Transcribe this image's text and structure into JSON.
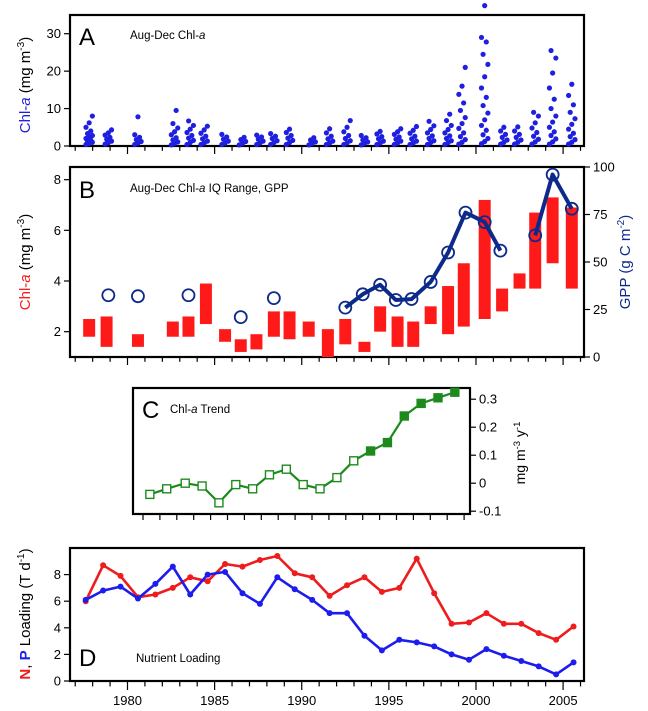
{
  "chart_data": [
    {
      "panel": "A",
      "type": "scatter",
      "title": "Aug-Dec Chl-a",
      "ylabel_left": "Chl-a (mg m-3)",
      "ylim": [
        0,
        35
      ],
      "yticks": [
        0,
        10,
        20,
        30
      ],
      "xlim": [
        1976.7,
        2006.2
      ],
      "colors": {
        "points": "#1f1fe0",
        "ylabel": "#1f1fe0"
      },
      "series": [
        {
          "x": 1977.8,
          "values": [
            0.4,
            0.7,
            1.0,
            1.3,
            1.6,
            2.0,
            2.4,
            2.8,
            3.3,
            4.0,
            5.0,
            6.2,
            8.0
          ]
        },
        {
          "x": 1978.9,
          "values": [
            0.5,
            0.9,
            1.3,
            1.8,
            2.3,
            2.9,
            3.5,
            4.3
          ]
        },
        {
          "x": 1980.6,
          "values": [
            0.4,
            0.8,
            1.2,
            1.7,
            2.3,
            3.0,
            7.8
          ]
        },
        {
          "x": 1982.7,
          "values": [
            0.3,
            0.7,
            1.1,
            1.6,
            2.2,
            3.0,
            3.8,
            4.8,
            6.0,
            9.5
          ]
        },
        {
          "x": 1983.6,
          "values": [
            0.4,
            0.9,
            1.5,
            2.1,
            2.8,
            3.6,
            4.5,
            5.5,
            6.7
          ]
        },
        {
          "x": 1984.4,
          "values": [
            0.4,
            0.8,
            1.3,
            1.9,
            2.6,
            3.4,
            4.3,
            5.3
          ]
        },
        {
          "x": 1985.6,
          "values": [
            0.4,
            0.8,
            1.3,
            1.8,
            2.4,
            3.1
          ]
        },
        {
          "x": 1986.6,
          "values": [
            0.3,
            0.7,
            1.2,
            1.7,
            2.3
          ]
        },
        {
          "x": 1987.6,
          "values": [
            0.4,
            0.8,
            1.3,
            1.8,
            2.4,
            2.9
          ]
        },
        {
          "x": 1988.4,
          "values": [
            0.4,
            0.9,
            1.4,
            2.0,
            2.6,
            3.3
          ]
        },
        {
          "x": 1989.3,
          "values": [
            0.4,
            0.9,
            1.5,
            2.1,
            2.8,
            3.6,
            4.5
          ]
        },
        {
          "x": 1990.6,
          "values": [
            0.3,
            0.7,
            1.1,
            1.6,
            2.2
          ]
        },
        {
          "x": 1991.6,
          "values": [
            0.4,
            0.8,
            1.3,
            1.9,
            2.6,
            3.5,
            4.6
          ]
        },
        {
          "x": 1992.6,
          "values": [
            0.4,
            0.8,
            1.4,
            2.0,
            2.8,
            3.8,
            5.0,
            6.8
          ]
        },
        {
          "x": 1993.6,
          "values": [
            0.3,
            0.7,
            1.1,
            1.6,
            2.2,
            2.8
          ]
        },
        {
          "x": 1994.5,
          "values": [
            0.4,
            0.8,
            1.3,
            1.9,
            2.5,
            3.2,
            3.9
          ]
        },
        {
          "x": 1995.5,
          "values": [
            0.4,
            0.8,
            1.3,
            1.8,
            2.4,
            3.1,
            3.8,
            4.6
          ]
        },
        {
          "x": 1996.4,
          "values": [
            0.4,
            0.8,
            1.3,
            1.9,
            2.6,
            3.4,
            4.2,
            5.2
          ]
        },
        {
          "x": 1997.4,
          "values": [
            0.4,
            0.9,
            1.4,
            2.0,
            2.7,
            3.5,
            4.4,
            5.4,
            6.6
          ]
        },
        {
          "x": 1998.4,
          "values": [
            0.4,
            0.9,
            1.4,
            2.0,
            2.7,
            3.5,
            4.4,
            5.5,
            6.8,
            8.5
          ]
        },
        {
          "x": 1999.2,
          "values": [
            0.5,
            1.0,
            1.7,
            2.5,
            3.5,
            4.7,
            6.0,
            7.6,
            9.5,
            11.5,
            13.8,
            16.0,
            21.0
          ]
        },
        {
          "x": 2000.5,
          "values": [
            0.6,
            1.2,
            2.0,
            3.0,
            4.2,
            5.5,
            7.0,
            8.8,
            10.8,
            13.0,
            15.5,
            18.5,
            21.8,
            24.5,
            27.8,
            29.0,
            37.5
          ]
        },
        {
          "x": 2001.6,
          "values": [
            0.5,
            1.0,
            1.6,
            2.3,
            3.1,
            4.0,
            5.0
          ]
        },
        {
          "x": 2002.4,
          "values": [
            0.5,
            1.0,
            1.6,
            2.3,
            3.1,
            4.0,
            5.1
          ]
        },
        {
          "x": 2003.4,
          "values": [
            0.5,
            1.1,
            1.8,
            2.6,
            3.6,
            4.8,
            6.2,
            8.0,
            9.0
          ]
        },
        {
          "x": 2004.4,
          "values": [
            0.5,
            1.1,
            1.9,
            2.8,
            3.8,
            5.0,
            6.4,
            8.0,
            10.0,
            12.5,
            15.5,
            19.5,
            23.5,
            25.5
          ]
        },
        {
          "x": 2005.5,
          "values": [
            0.5,
            1.0,
            1.7,
            2.5,
            3.4,
            4.5,
            5.8,
            7.3,
            9.0,
            11.0,
            13.5,
            16.5
          ]
        }
      ]
    },
    {
      "panel": "B",
      "type": "bar",
      "title": "Aug-Dec Chl-a IQ Range, GPP",
      "ylabel_left": "Chl-a (mg m-3)",
      "ylabel_right": "GPP (g C m-2)",
      "ylim_left": [
        1.0,
        8.5
      ],
      "yticks_left": [
        2,
        4,
        6,
        8
      ],
      "ylim_right": [
        0,
        100
      ],
      "yticks_right": [
        0,
        25,
        50,
        75,
        100
      ],
      "xlim": [
        1976.7,
        2006.2
      ],
      "colors": {
        "bars": "#ff1a1a",
        "gpp": "#0d2a8a",
        "ylabel_left": "#ff1a1a",
        "ylabel_right": "#0d2a8a"
      },
      "iq_range": [
        {
          "x": 1977.8,
          "low": 1.8,
          "high": 2.5
        },
        {
          "x": 1978.8,
          "low": 1.4,
          "high": 2.6
        },
        {
          "x": 1980.6,
          "low": 1.4,
          "high": 1.9
        },
        {
          "x": 1982.6,
          "low": 1.8,
          "high": 2.4
        },
        {
          "x": 1983.5,
          "low": 1.8,
          "high": 2.6
        },
        {
          "x": 1984.5,
          "low": 2.3,
          "high": 3.9
        },
        {
          "x": 1985.6,
          "low": 1.6,
          "high": 2.1
        },
        {
          "x": 1986.5,
          "low": 1.2,
          "high": 1.7
        },
        {
          "x": 1987.4,
          "low": 1.3,
          "high": 1.9
        },
        {
          "x": 1988.4,
          "low": 1.8,
          "high": 2.8
        },
        {
          "x": 1989.3,
          "low": 1.7,
          "high": 2.8
        },
        {
          "x": 1990.4,
          "low": 1.8,
          "high": 2.4
        },
        {
          "x": 1991.5,
          "low": 1.0,
          "high": 2.1
        },
        {
          "x": 1992.5,
          "low": 1.5,
          "high": 2.5
        },
        {
          "x": 1993.6,
          "low": 1.2,
          "high": 1.6
        },
        {
          "x": 1994.5,
          "low": 2.0,
          "high": 3.0
        },
        {
          "x": 1995.5,
          "low": 1.4,
          "high": 2.6
        },
        {
          "x": 1996.4,
          "low": 1.4,
          "high": 2.4
        },
        {
          "x": 1997.4,
          "low": 2.3,
          "high": 3.0
        },
        {
          "x": 1998.4,
          "low": 1.9,
          "high": 3.8
        },
        {
          "x": 1999.3,
          "low": 2.2,
          "high": 4.7
        },
        {
          "x": 2000.5,
          "low": 2.5,
          "high": 7.2
        },
        {
          "x": 2001.5,
          "low": 2.8,
          "high": 3.7
        },
        {
          "x": 2002.5,
          "low": 3.7,
          "high": 4.3
        },
        {
          "x": 2003.4,
          "low": 3.7,
          "high": 6.7
        },
        {
          "x": 2004.4,
          "low": 4.7,
          "high": 7.3
        },
        {
          "x": 2005.5,
          "low": 3.7,
          "high": 6.9
        }
      ],
      "gpp_points": [
        {
          "x": 1978.9,
          "y": 32.5
        },
        {
          "x": 1980.6,
          "y": 32
        },
        {
          "x": 1983.5,
          "y": 32.5
        },
        {
          "x": 1986.5,
          "y": 21
        },
        {
          "x": 1988.4,
          "y": 31
        }
      ],
      "gpp_line": [
        {
          "x": 1992.5,
          "y": 26
        },
        {
          "x": 1993.5,
          "y": 33
        },
        {
          "x": 1994.5,
          "y": 38
        },
        {
          "x": 1995.4,
          "y": 30
        },
        {
          "x": 1996.3,
          "y": 30.5
        },
        {
          "x": 1997.4,
          "y": 39.5
        },
        {
          "x": 1998.4,
          "y": 55
        },
        {
          "x": 1999.4,
          "y": 76
        },
        {
          "x": 2000.5,
          "y": 71
        },
        {
          "x": 2001.4,
          "y": 56
        }
      ],
      "gpp_line_2": [
        {
          "x": 2003.4,
          "y": 64
        },
        {
          "x": 2004.4,
          "y": 96
        },
        {
          "x": 2005.5,
          "y": 78
        }
      ]
    },
    {
      "panel": "C",
      "type": "line",
      "title": "Chl-a Trend",
      "ylabel_right": "mg m-3 y-1",
      "ylim": [
        -0.11,
        0.34
      ],
      "yticks": [
        -0.1,
        0,
        0.1,
        0.2,
        0.3
      ],
      "ytick_labels": [
        "-0.1",
        "0",
        "0.1",
        "0.2",
        "0.3"
      ],
      "xlim": [
        1976.7,
        2006.2
      ],
      "colors": {
        "line": "#1e8a1e"
      },
      "points": [
        {
          "x": 1977.8,
          "y": -0.04,
          "filled": false
        },
        {
          "x": 1978.8,
          "y": -0.02,
          "filled": false
        },
        {
          "x": 1979.9,
          "y": 0.0,
          "filled": false
        },
        {
          "x": 1980.9,
          "y": -0.01,
          "filled": false
        },
        {
          "x": 1981.9,
          "y": -0.07,
          "filled": false
        },
        {
          "x": 1982.9,
          "y": -0.005,
          "filled": false
        },
        {
          "x": 1983.9,
          "y": -0.02,
          "filled": false
        },
        {
          "x": 1984.9,
          "y": 0.03,
          "filled": false
        },
        {
          "x": 1985.9,
          "y": 0.05,
          "filled": false
        },
        {
          "x": 1986.9,
          "y": -0.005,
          "filled": false
        },
        {
          "x": 1987.9,
          "y": -0.02,
          "filled": false
        },
        {
          "x": 1988.9,
          "y": 0.02,
          "filled": false
        },
        {
          "x": 1989.9,
          "y": 0.08,
          "filled": false
        },
        {
          "x": 1990.9,
          "y": 0.115,
          "filled": true
        },
        {
          "x": 1991.9,
          "y": 0.145,
          "filled": true
        },
        {
          "x": 1992.9,
          "y": 0.24,
          "filled": true
        },
        {
          "x": 1993.9,
          "y": 0.285,
          "filled": true
        },
        {
          "x": 1994.9,
          "y": 0.305,
          "filled": true
        },
        {
          "x": 1995.9,
          "y": 0.325,
          "filled": true
        }
      ]
    },
    {
      "panel": "D",
      "type": "line",
      "title": "Nutrient Loading",
      "ylabel_left": "N, P Loading (T d-1)",
      "ylim": [
        0,
        10
      ],
      "yticks": [
        0,
        2,
        4,
        6,
        8
      ],
      "xlim": [
        1976.7,
        2006.2
      ],
      "xticks": [
        1980,
        1985,
        1990,
        1995,
        2000,
        2005
      ],
      "series": [
        {
          "name": "N",
          "color": "#ee1c1c",
          "x": [
            1977.6,
            1978.6,
            1979.6,
            1980.6,
            1981.6,
            1982.6,
            1983.6,
            1984.6,
            1985.6,
            1986.6,
            1987.6,
            1988.6,
            1989.6,
            1990.6,
            1991.6,
            1992.6,
            1993.6,
            1994.6,
            1995.6,
            1996.6,
            1997.6,
            1998.6,
            1999.6,
            2000.6,
            2001.6,
            2002.6,
            2003.6,
            2004.6,
            2005.6
          ],
          "values": [
            6.0,
            8.7,
            7.9,
            6.3,
            6.5,
            7.0,
            7.8,
            7.5,
            8.8,
            8.6,
            9.1,
            9.4,
            8.1,
            7.8,
            6.4,
            7.2,
            7.8,
            6.7,
            7.0,
            9.2,
            6.6,
            4.3,
            4.4,
            5.1,
            4.3,
            4.3,
            3.6,
            3.1,
            4.1
          ]
        },
        {
          "name": "P",
          "color": "#1c1cee",
          "x": [
            1977.6,
            1978.6,
            1979.6,
            1980.6,
            1981.6,
            1982.6,
            1983.6,
            1984.6,
            1985.6,
            1986.6,
            1987.6,
            1988.6,
            1989.6,
            1990.6,
            1991.6,
            1992.6,
            1993.6,
            1994.6,
            1995.6,
            1996.6,
            1997.6,
            1998.6,
            1999.6,
            2000.6,
            2001.6,
            2002.6,
            2003.6,
            2004.6,
            2005.6
          ],
          "values": [
            6.1,
            6.8,
            7.1,
            6.2,
            7.3,
            8.6,
            6.5,
            8.0,
            8.2,
            6.6,
            5.8,
            7.8,
            6.9,
            6.1,
            5.1,
            5.1,
            3.4,
            2.3,
            3.1,
            2.9,
            2.6,
            2.0,
            1.6,
            2.4,
            1.9,
            1.5,
            1.1,
            0.5,
            1.4
          ]
        }
      ]
    }
  ],
  "labels": {
    "panel_a": "A",
    "panel_b": "B",
    "panel_c": "C",
    "panel_d": "D",
    "title_a_pre": "Aug-Dec Chl-",
    "title_a_em": "a",
    "title_b_pre": "Aug-Dec Chl-",
    "title_b_em": "a",
    "title_b_post": " IQ Range, GPP",
    "title_c_pre": "Chl-",
    "title_c_em": "a",
    "title_c_post": " Trend",
    "title_d": "Nutrient Loading",
    "ylab_a_pre": "Chl-",
    "ylab_a_em": "a",
    "ylab_a_post": " (mg m",
    "ylab_a_sup": "-3",
    "ylab_a_end": ")",
    "ylab_b_pre": "Chl-",
    "ylab_b_em": "a",
    "ylab_b_post": " (mg m",
    "ylab_b_sup": "-3",
    "ylab_b_end": ")",
    "ylab_b2_pre": "GPP (g C m",
    "ylab_b2_sup": "-2",
    "ylab_b2_end": ")",
    "ylab_c_pre": "mg m",
    "ylab_c_sup1": "-3",
    "ylab_c_mid": " y",
    "ylab_c_sup2": "-1",
    "ylab_d_n": "N",
    "ylab_d_sep": ", ",
    "ylab_d_p": "P",
    "ylab_d_post": " Loading (T d",
    "ylab_d_sup": "-1",
    "ylab_d_end": ")"
  }
}
